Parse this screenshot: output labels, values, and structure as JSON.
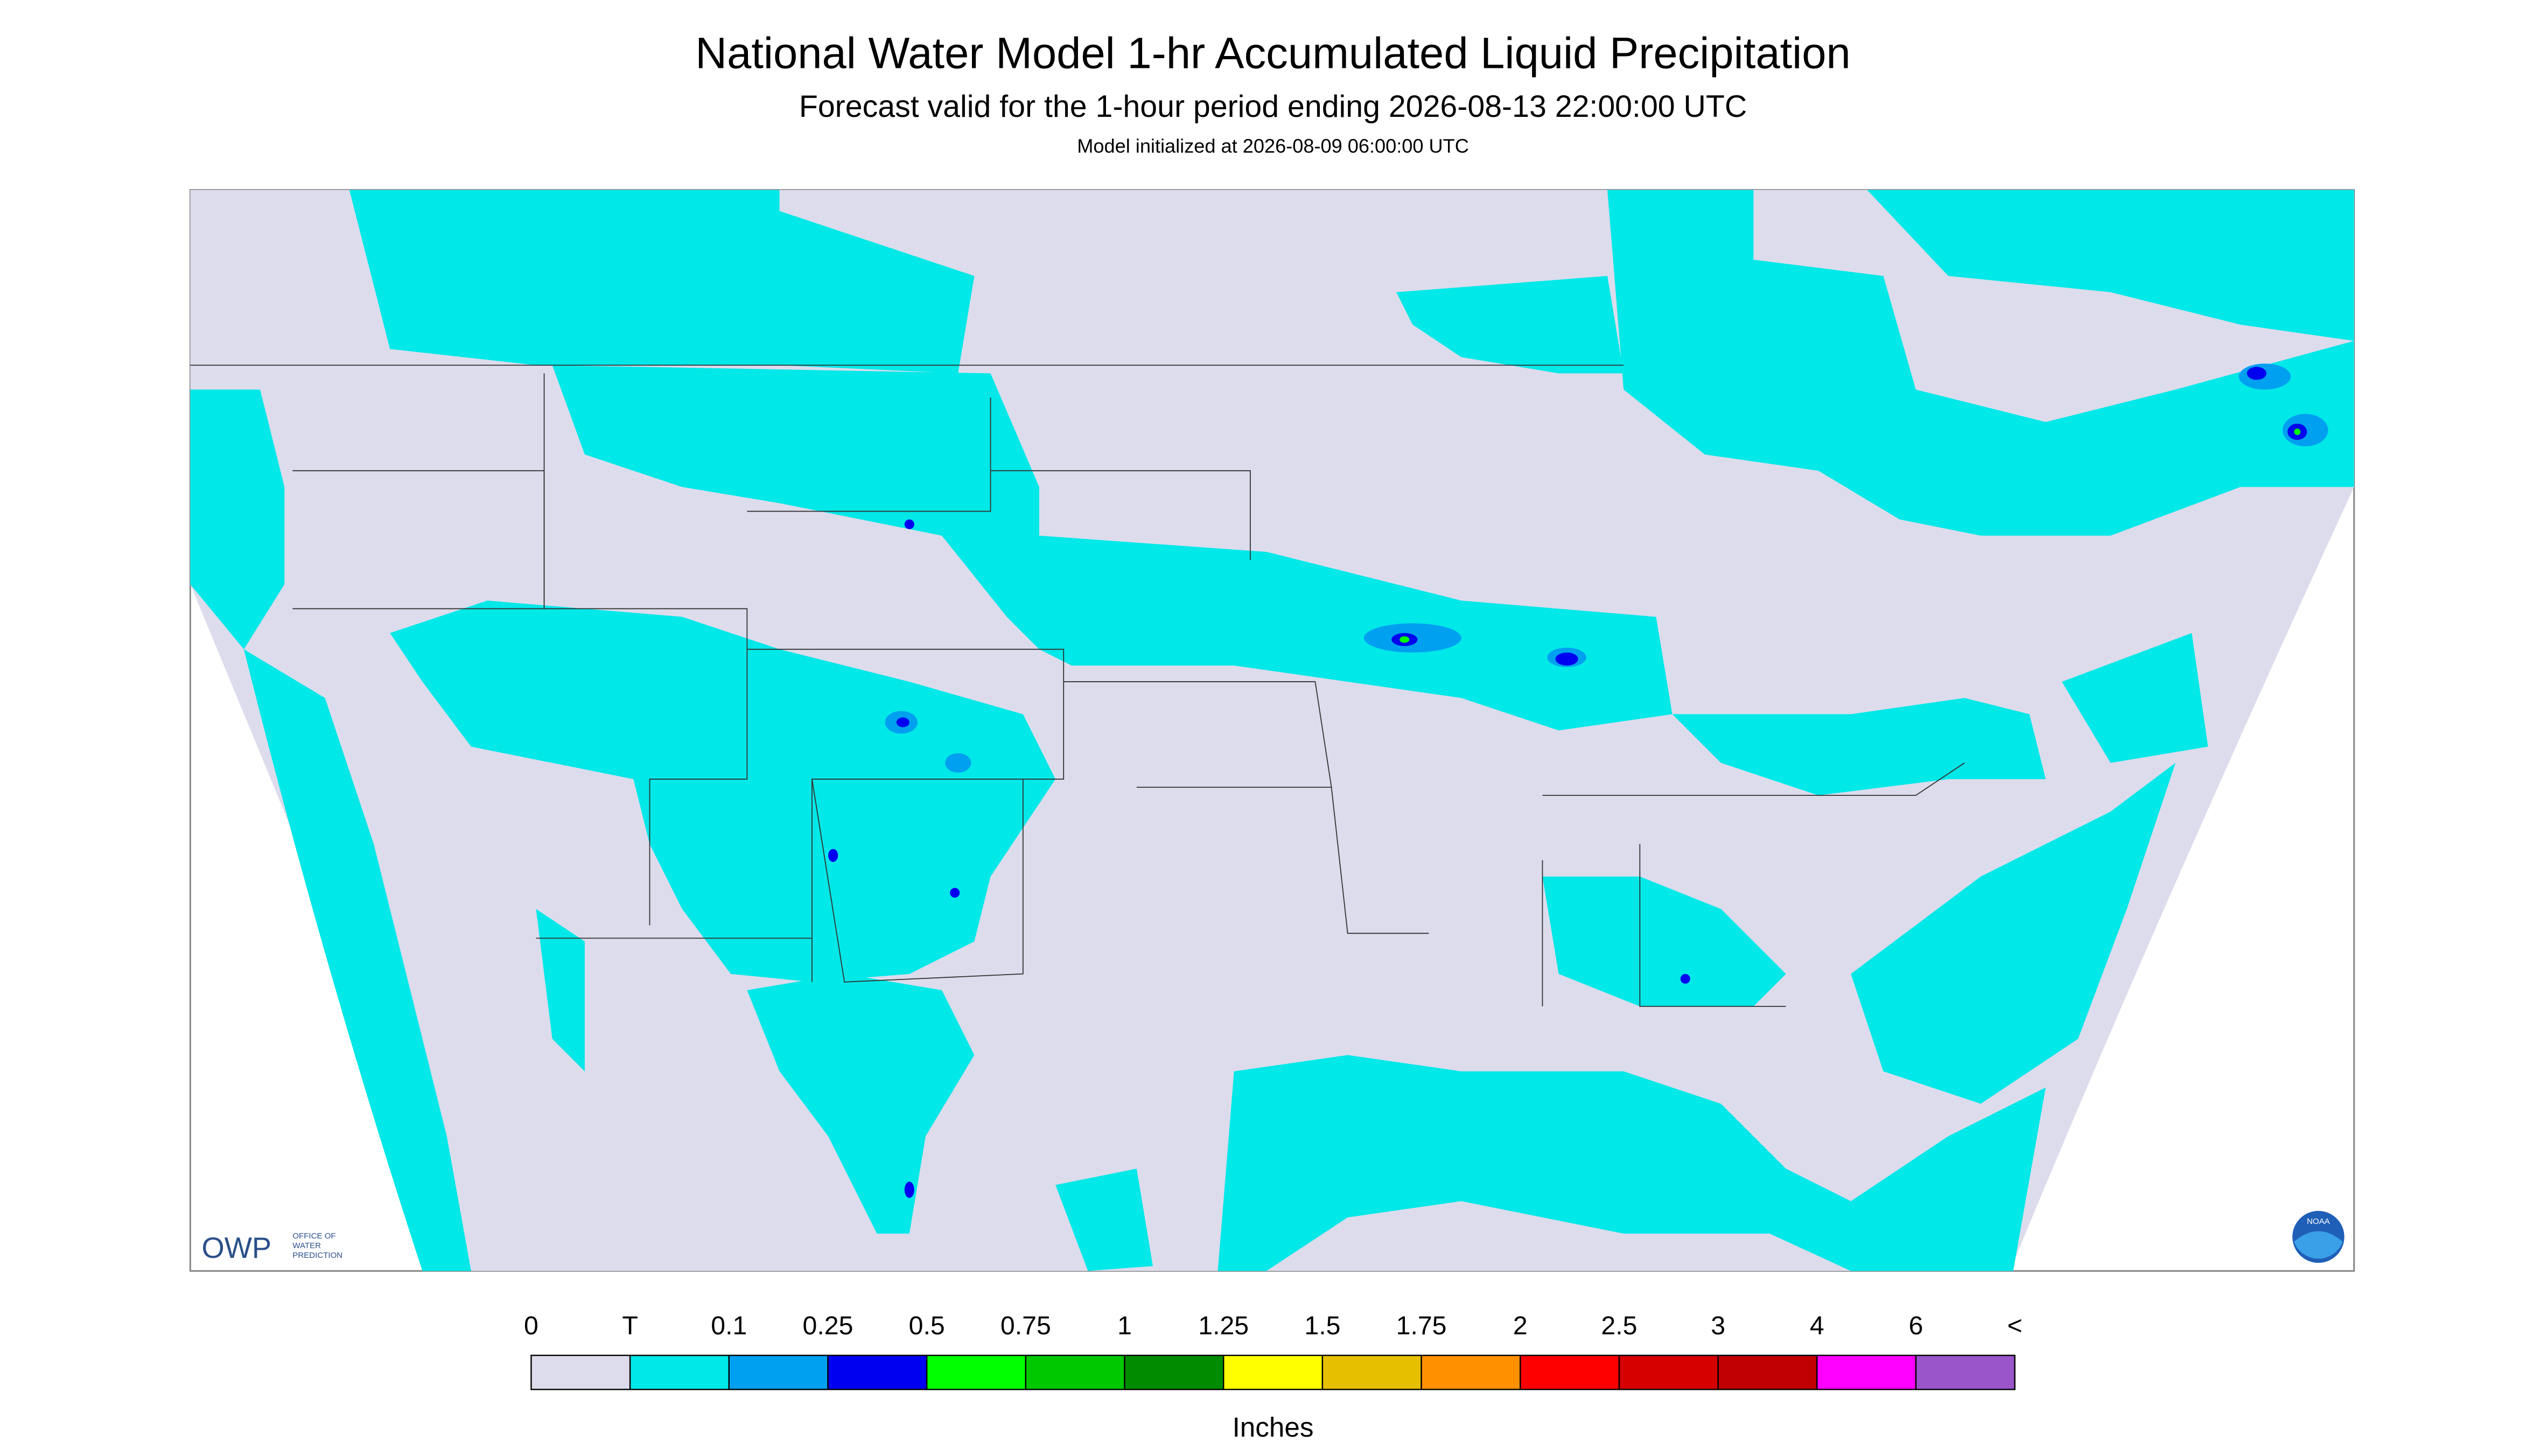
{
  "header": {
    "title": "National Water Model 1-hr Accumulated Liquid Precipitation",
    "subtitle": "Forecast valid for the 1-hour period ending 2026-08-13 22:00:00 UTC",
    "init": "Model initialized at 2026-08-09 06:00:00 UTC"
  },
  "logos": {
    "owp": "OWP",
    "owp_name": [
      "OFFICE OF",
      "WATER",
      "PREDICTION"
    ],
    "noaa": "NOAA"
  },
  "legend": {
    "labels": [
      "0",
      "T",
      "0.1",
      "0.25",
      "0.5",
      "0.75",
      "1",
      "1.25",
      "1.5",
      "1.75",
      "2",
      "2.5",
      "3",
      "4",
      "6",
      "<"
    ],
    "colors": [
      "#dcdcec",
      "#00e8e8",
      "#00a0f0",
      "#0000f0",
      "#00ff00",
      "#00c800",
      "#008c00",
      "#ffff00",
      "#e6c000",
      "#ff9000",
      "#ff0000",
      "#d60000",
      "#c00000",
      "#ff00ff",
      "#9955c9"
    ],
    "unit": "Inches"
  }
}
